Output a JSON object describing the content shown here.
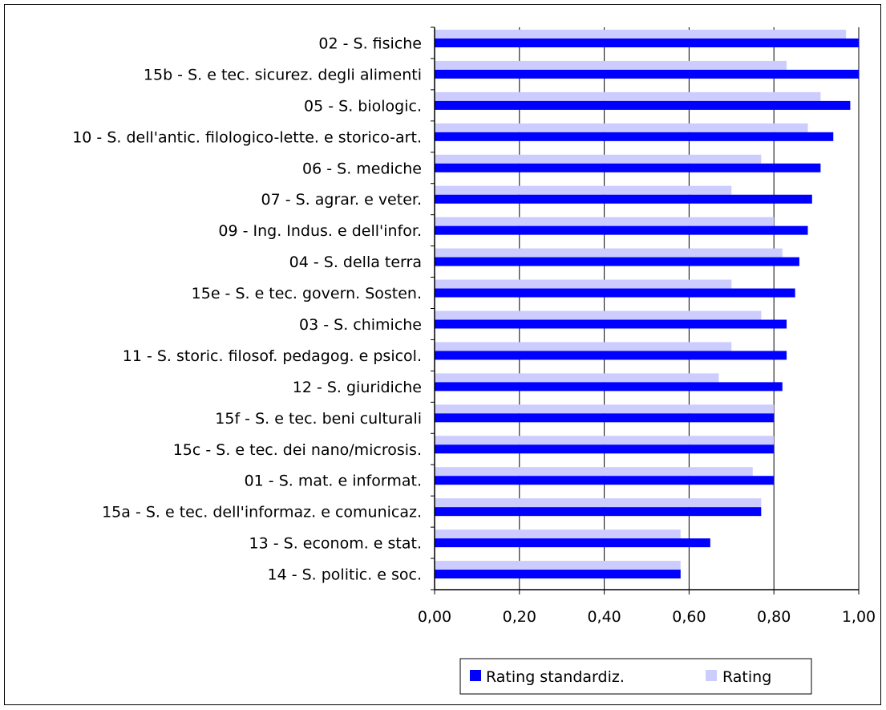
{
  "chart_data": {
    "type": "bar",
    "orientation": "horizontal",
    "categories": [
      "02 - S. fisiche",
      "15b - S. e tec. sicurez. degli alimenti",
      "05 - S. biologic.",
      "10 - S. dell'antic. filologico-lette. e storico-art.",
      "06 - S. mediche",
      "07 - S. agrar. e veter.",
      "09 - Ing. Indus. e dell'infor.",
      "04 - S. della terra",
      "15e - S. e tec. govern. Sosten.",
      "03 - S. chimiche",
      "11 - S. storic. filosof. pedagog. e psicol.",
      "12 - S. giuridiche",
      "15f - S. e tec. beni culturali",
      "15c - S. e tec. dei nano/microsis.",
      "01 - S. mat. e informat.",
      "15a - S. e tec. dell'informaz. e comunicaz.",
      "13 - S. econom. e stat.",
      "14 - S. politic. e soc."
    ],
    "series": [
      {
        "name": "Rating standardiz.",
        "color": "#0000ff",
        "values": [
          1.0,
          1.0,
          0.98,
          0.94,
          0.91,
          0.89,
          0.88,
          0.86,
          0.85,
          0.83,
          0.83,
          0.82,
          0.8,
          0.8,
          0.8,
          0.77,
          0.65,
          0.58
        ]
      },
      {
        "name": "Rating",
        "color": "#ccccff",
        "values": [
          0.97,
          0.83,
          0.91,
          0.88,
          0.77,
          0.7,
          0.8,
          0.82,
          0.7,
          0.77,
          0.7,
          0.67,
          0.8,
          0.8,
          0.75,
          0.77,
          0.58,
          0.58
        ]
      }
    ],
    "xlim": [
      0,
      1
    ],
    "xticks": [
      "0,00",
      "0,20",
      "0,40",
      "0,60",
      "0,80",
      "1,00"
    ],
    "xtick_values": [
      0,
      0.2,
      0.4,
      0.6,
      0.8,
      1.0
    ],
    "grid": true,
    "legend": "bottom",
    "xlabel": "",
    "ylabel": "",
    "title": ""
  }
}
